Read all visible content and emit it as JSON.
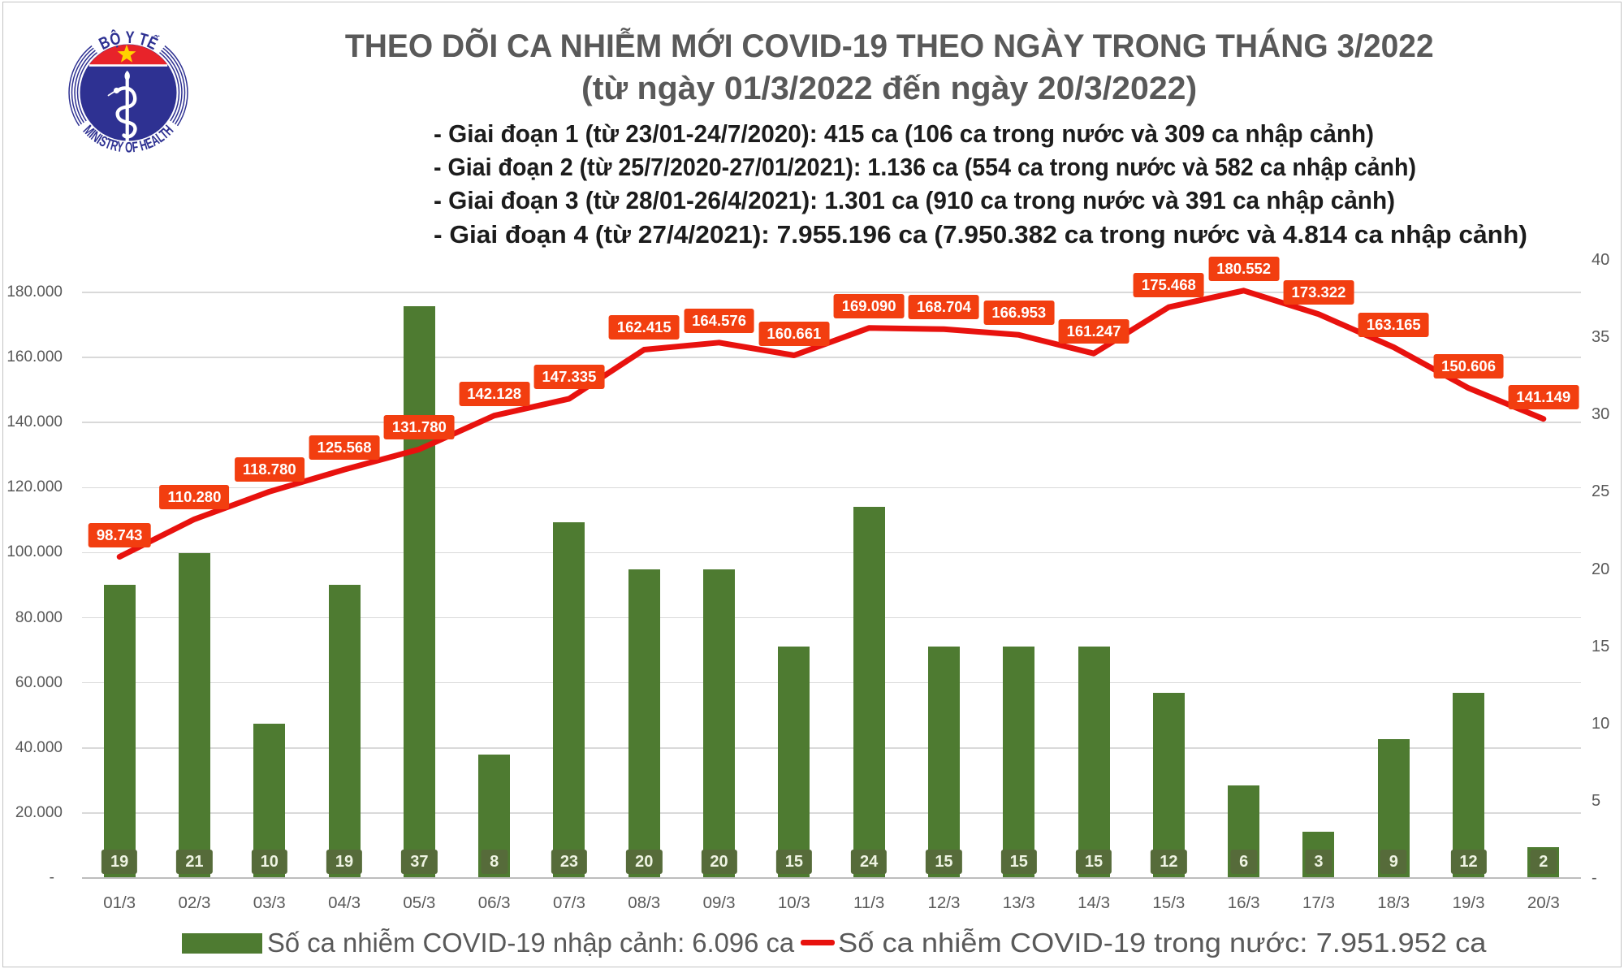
{
  "header": {
    "title": "THEO DÕI CA NHIỄM MỚI COVID-19 THEO NGÀY TRONG THÁNG 3/2022",
    "subtitle": "(từ ngày 01/3/2022 đến ngày 20/3/2022)",
    "phases": [
      "- Giai đoạn 1 (từ 23/01-24/7/2020): 415 ca (106 ca trong nước và 309 ca nhập cảnh)",
      "- Giai đoạn 2 (từ 25/7/2020-27/01/2021): 1.136 ca (554 ca trong nước và 582 ca nhập cảnh)",
      "- Giai đoạn 3 (từ 28/01-26/4/2021): 1.301 ca (910 ca trong nước và 391 ca nhập cảnh)",
      "- Giai đoạn 4 (từ 27/4/2021): 7.955.196 ca (7.950.382 ca trong nước và 4.814 ca nhập cảnh)"
    ]
  },
  "logo": {
    "top_text": "BỘ Y TẾ",
    "bottom_text": "MINISTRY OF HEALTH"
  },
  "chart_data": {
    "type": "combo",
    "title": "THEO DÕI CA NHIỄM MỚI COVID-19 THEO NGÀY TRONG THÁNG 3/2022",
    "subtitle": "(từ ngày 01/3/2022 đến ngày 20/3/2022)",
    "categories": [
      "01/3",
      "02/3",
      "03/3",
      "04/3",
      "05/3",
      "06/3",
      "07/3",
      "08/3",
      "09/3",
      "10/3",
      "11/3",
      "12/3",
      "13/3",
      "14/3",
      "15/3",
      "16/3",
      "17/3",
      "18/3",
      "19/3",
      "20/3"
    ],
    "series": [
      {
        "name": "Số ca nhiễm COVID-19 nhập cảnh",
        "type": "bar",
        "axis": "right",
        "color": "#4e7b31",
        "values": [
          19,
          21,
          10,
          19,
          37,
          8,
          23,
          20,
          20,
          15,
          24,
          15,
          15,
          15,
          12,
          6,
          3,
          9,
          12,
          2
        ],
        "point_labels": [
          "19",
          "21",
          "10",
          "19",
          "37",
          "8",
          "23",
          "20",
          "20",
          "15",
          "24",
          "15",
          "15",
          "15",
          "12",
          "6",
          "3",
          "9",
          "12",
          "2"
        ]
      },
      {
        "name": "Số ca nhiễm COVID-19 trong nước",
        "type": "line",
        "axis": "left",
        "color": "#e8120e",
        "values": [
          98743,
          110280,
          118780,
          125568,
          131780,
          142128,
          147335,
          162415,
          164576,
          160661,
          169090,
          168704,
          166953,
          161247,
          175468,
          180552,
          173322,
          163165,
          150606,
          141149
        ],
        "point_labels": [
          "98.743",
          "110.280",
          "118.780",
          "125.568",
          "131.780",
          "142.128",
          "147.335",
          "162.415",
          "164.576",
          "160.661",
          "169.090",
          "168.704",
          "166.953",
          "161.247",
          "175.468",
          "180.552",
          "173.322",
          "163.165",
          "150.606",
          "141.149"
        ]
      }
    ],
    "left_axis": {
      "min": 0,
      "max": 190000,
      "major_unit": 20000,
      "ticks": [
        "-",
        "20.000",
        "40.000",
        "60.000",
        "80.000",
        "100.000",
        "120.000",
        "140.000",
        "160.000",
        "180.000"
      ]
    },
    "right_axis": {
      "min": 0,
      "max": 40,
      "major_unit": 5,
      "ticks": [
        "-",
        "5",
        "10",
        "15",
        "20",
        "25",
        "30",
        "35",
        "40"
      ]
    },
    "grid": true,
    "legend_position": "bottom"
  },
  "legend": {
    "bar_label": "Số ca nhiễm COVID-19 nhập cảnh: 6.096 ca",
    "line_label": "Số ca nhiễm COVID-19 trong nước: 7.951.952 ca"
  },
  "colors": {
    "bar": "#4e7b31",
    "bar_value_box": "#566b3a",
    "line": "#e8120e",
    "line_label_box": "#f23e10",
    "title": "#595959",
    "axis_text": "#595959",
    "gridline": "#d9d9d9",
    "logo_blue": "#2e3192",
    "logo_red": "#e8232a",
    "logo_star": "#ffd200"
  }
}
